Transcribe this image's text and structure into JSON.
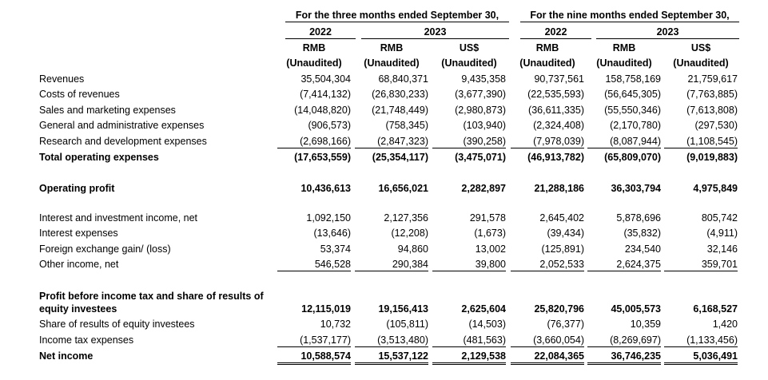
{
  "header": {
    "periods": [
      "For the three months ended September 30,",
      "For the nine months ended September 30,"
    ],
    "years": [
      "2022",
      "2023",
      "2022",
      "2023"
    ],
    "currencies": [
      "RMB",
      "RMB",
      "US$",
      "RMB",
      "RMB",
      "US$"
    ],
    "audit": [
      "(Unaudited)",
      "(Unaudited)",
      "(Unaudited)",
      "(Unaudited)",
      "(Unaudited)",
      "(Unaudited)"
    ]
  },
  "table": {
    "rows": [
      {
        "label": "Revenues",
        "values": [
          "35,504,304",
          "68,840,371",
          "9,435,358",
          "90,737,561",
          "158,758,169",
          "21,759,617"
        ]
      },
      {
        "label": "Costs of revenues",
        "values": [
          "(7,414,132)",
          "(26,830,233)",
          "(3,677,390)",
          "(22,535,593)",
          "(56,645,305)",
          "(7,763,885)"
        ]
      },
      {
        "label": "Sales and marketing expenses",
        "values": [
          "(14,048,820)",
          "(21,748,449)",
          "(2,980,873)",
          "(36,611,335)",
          "(55,550,346)",
          "(7,613,808)"
        ]
      },
      {
        "label": "General and administrative expenses",
        "values": [
          "(906,573)",
          "(758,345)",
          "(103,940)",
          "(2,324,408)",
          "(2,170,780)",
          "(297,530)"
        ]
      },
      {
        "label": "Research and development expenses",
        "values": [
          "(2,698,166)",
          "(2,847,323)",
          "(390,258)",
          "(7,978,039)",
          "(8,087,944)",
          "(1,108,545)"
        ],
        "underline": "single"
      },
      {
        "label": "Total operating expenses",
        "values": [
          "(17,653,559)",
          "(25,354,117)",
          "(3,475,071)",
          "(46,913,782)",
          "(65,809,070)",
          "(9,019,883)"
        ],
        "bold": true
      },
      {
        "label": "Operating profit",
        "values": [
          "10,436,613",
          "16,656,021",
          "2,282,897",
          "21,288,186",
          "36,303,794",
          "4,975,849"
        ],
        "bold": true
      },
      {
        "label": "Interest and investment income, net",
        "values": [
          "1,092,150",
          "2,127,356",
          "291,578",
          "2,645,402",
          "5,878,696",
          "805,742"
        ]
      },
      {
        "label": "Interest expenses",
        "values": [
          "(13,646)",
          "(12,208)",
          "(1,673)",
          "(39,434)",
          "(35,832)",
          "(4,911)"
        ]
      },
      {
        "label": "Foreign exchange gain/ (loss)",
        "values": [
          "53,374",
          "94,860",
          "13,002",
          "(125,891)",
          "234,540",
          "32,146"
        ]
      },
      {
        "label": "Other income, net",
        "values": [
          "546,528",
          "290,384",
          "39,800",
          "2,052,533",
          "2,624,375",
          "359,701"
        ],
        "underline": "single"
      },
      {
        "label": "Profit before income tax and share of results of equity investees",
        "values": [
          "12,115,019",
          "19,156,413",
          "2,625,604",
          "25,820,796",
          "45,005,573",
          "6,168,527"
        ],
        "bold": true
      },
      {
        "label": "Share of results of equity investees",
        "values": [
          "10,732",
          "(105,811)",
          "(14,503)",
          "(76,377)",
          "10,359",
          "1,420"
        ]
      },
      {
        "label": "Income tax expenses",
        "values": [
          "(1,537,177)",
          "(3,513,480)",
          "(481,563)",
          "(3,660,054)",
          "(8,269,697)",
          "(1,133,456)"
        ],
        "underline": "single"
      },
      {
        "label": "Net income",
        "values": [
          "10,588,574",
          "15,537,122",
          "2,129,538",
          "22,084,365",
          "36,746,235",
          "5,036,491"
        ],
        "bold": true,
        "underline": "double"
      }
    ]
  }
}
